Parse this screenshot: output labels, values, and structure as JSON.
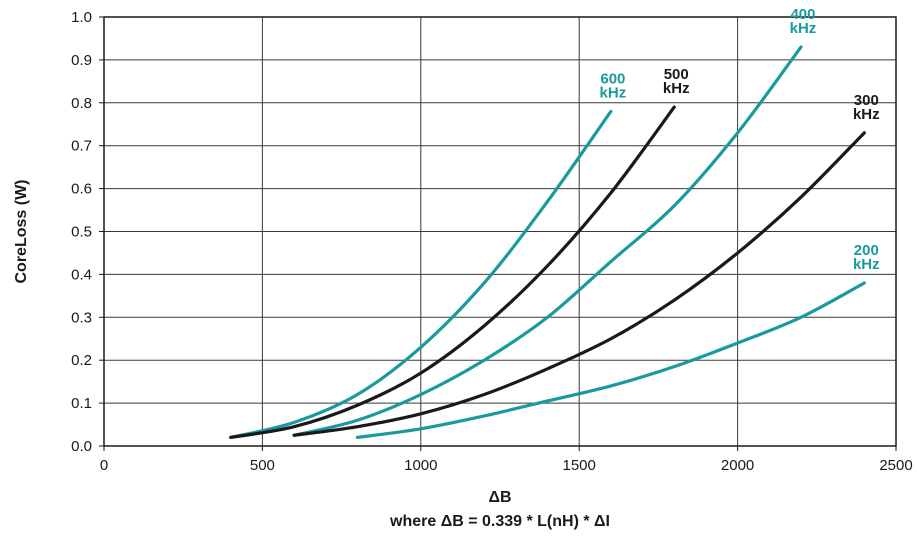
{
  "chart_data": {
    "type": "line",
    "title": "",
    "xlabel": "ΔB",
    "xlabel_sub": "where ΔB = 0.339 * L(nH) * ΔI",
    "ylabel": "CoreLoss (W)",
    "xlim": [
      0,
      2500
    ],
    "ylim": [
      0,
      1.0
    ],
    "xticks": [
      0,
      500,
      1000,
      1500,
      2000,
      2500
    ],
    "xtick_labels": [
      "0",
      "500",
      "1000",
      "1500",
      "2000",
      "2500"
    ],
    "yticks": [
      0.0,
      0.1,
      0.2,
      0.3,
      0.4,
      0.5,
      0.6,
      0.7,
      0.8,
      0.9,
      1.0
    ],
    "ytick_labels": [
      "0.0",
      "0.1",
      "0.2",
      "0.3",
      "0.4",
      "0.5",
      "0.6",
      "0.7",
      "0.8",
      "0.9",
      "1.0"
    ],
    "grid": true,
    "legend": "labels at curve ends",
    "series": [
      {
        "name": "600 kHz",
        "label_lines": [
          "600",
          "kHz"
        ],
        "color": "#1a9a9e",
        "x": [
          400,
          600,
          800,
          1000,
          1200,
          1400,
          1600
        ],
        "y": [
          0.02,
          0.055,
          0.12,
          0.23,
          0.38,
          0.57,
          0.78
        ]
      },
      {
        "name": "500 kHz",
        "label_lines": [
          "500",
          "kHz"
        ],
        "color": "#1a1a1a",
        "x": [
          400,
          600,
          800,
          1000,
          1200,
          1400,
          1600,
          1800
        ],
        "y": [
          0.02,
          0.045,
          0.095,
          0.17,
          0.28,
          0.42,
          0.59,
          0.79
        ]
      },
      {
        "name": "400 kHz",
        "label_lines": [
          "400",
          "kHz"
        ],
        "color": "#1a9a9e",
        "x": [
          600,
          800,
          1000,
          1200,
          1400,
          1600,
          1800,
          2000,
          2200
        ],
        "y": [
          0.025,
          0.06,
          0.12,
          0.2,
          0.3,
          0.43,
          0.56,
          0.73,
          0.93
        ]
      },
      {
        "name": "300 kHz",
        "label_lines": [
          "300",
          "kHz"
        ],
        "color": "#1a1a1a",
        "x": [
          600,
          800,
          1000,
          1200,
          1400,
          1600,
          1800,
          2000,
          2200,
          2400
        ],
        "y": [
          0.025,
          0.045,
          0.075,
          0.12,
          0.18,
          0.25,
          0.34,
          0.45,
          0.58,
          0.73
        ]
      },
      {
        "name": "200 kHz",
        "label_lines": [
          "200",
          "kHz"
        ],
        "color": "#1a9a9e",
        "x": [
          800,
          1000,
          1200,
          1400,
          1600,
          1800,
          2000,
          2200,
          2400
        ],
        "y": [
          0.02,
          0.04,
          0.07,
          0.105,
          0.14,
          0.185,
          0.24,
          0.3,
          0.38
        ]
      }
    ]
  }
}
